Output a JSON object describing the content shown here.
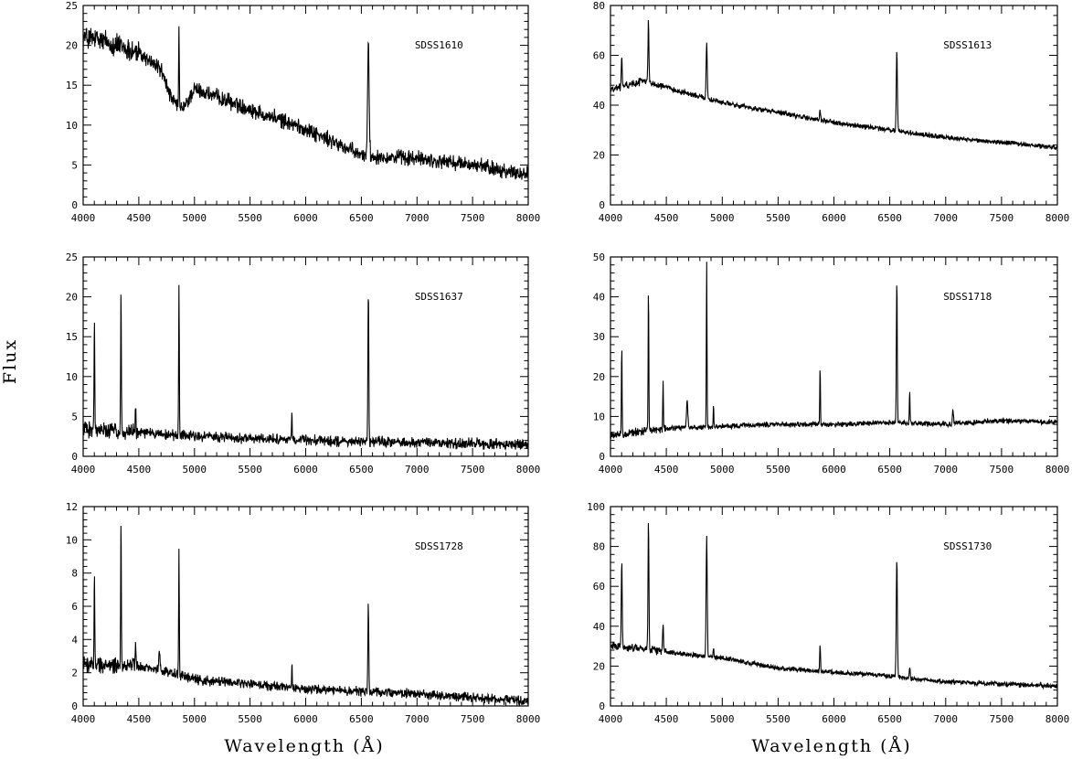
{
  "figure": {
    "ylabel": "Flux",
    "xlabel": "Wavelength (Å)"
  },
  "chart_data": [
    {
      "type": "line",
      "label": "SDSS1610",
      "xlim": [
        4000,
        8000
      ],
      "ylim": [
        0,
        25
      ],
      "xticks": [
        4000,
        4500,
        5000,
        5500,
        6000,
        6500,
        7000,
        7500,
        8000
      ],
      "yticks": [
        0,
        5,
        10,
        15,
        20,
        25
      ],
      "continuum": [
        [
          4000,
          21
        ],
        [
          4200,
          20.5
        ],
        [
          4500,
          19
        ],
        [
          4700,
          17
        ],
        [
          4800,
          13
        ],
        [
          4900,
          12
        ],
        [
          5000,
          14.5
        ],
        [
          5200,
          13.5
        ],
        [
          5500,
          12
        ],
        [
          6000,
          9.5
        ],
        [
          6500,
          6.2
        ],
        [
          7000,
          5.8
        ],
        [
          7500,
          5
        ],
        [
          8000,
          3.8
        ]
      ],
      "noise": 1.2,
      "lines": [
        [
          4861,
          9,
          3
        ],
        [
          6563,
          14,
          7
        ]
      ]
    },
    {
      "type": "line",
      "label": "SDSS1613",
      "xlim": [
        4000,
        8000
      ],
      "ylim": [
        0,
        80
      ],
      "xticks": [
        4000,
        4500,
        5000,
        5500,
        6000,
        6500,
        7000,
        7500,
        8000
      ],
      "yticks": [
        0,
        20,
        40,
        60,
        80
      ],
      "continuum": [
        [
          4000,
          46
        ],
        [
          4300,
          50
        ],
        [
          4500,
          47
        ],
        [
          5000,
          41
        ],
        [
          5500,
          37
        ],
        [
          6000,
          33
        ],
        [
          6500,
          30
        ],
        [
          7000,
          27
        ],
        [
          7500,
          25
        ],
        [
          8000,
          23
        ]
      ],
      "noise": 1.2,
      "lines": [
        [
          4101,
          12,
          4
        ],
        [
          4340,
          25,
          4
        ],
        [
          4861,
          22,
          5
        ],
        [
          5876,
          4,
          4
        ],
        [
          6563,
          32,
          5
        ]
      ]
    },
    {
      "type": "line",
      "label": "SDSS1637",
      "xlim": [
        4000,
        8000
      ],
      "ylim": [
        0,
        25
      ],
      "xticks": [
        4000,
        4500,
        5000,
        5500,
        6000,
        6500,
        7000,
        7500,
        8000
      ],
      "yticks": [
        0,
        5,
        10,
        15,
        20,
        25
      ],
      "continuum": [
        [
          4000,
          3.5
        ],
        [
          4500,
          3
        ],
        [
          5000,
          2.5
        ],
        [
          6000,
          2
        ],
        [
          7000,
          1.7
        ],
        [
          8000,
          1.5
        ]
      ],
      "noise": 0.8,
      "lines": [
        [
          4101,
          14,
          3
        ],
        [
          4340,
          18,
          3
        ],
        [
          4471,
          4,
          3
        ],
        [
          4861,
          19,
          3
        ],
        [
          5876,
          3,
          3
        ],
        [
          6563,
          19,
          4
        ]
      ]
    },
    {
      "type": "line",
      "label": "SDSS1718",
      "xlim": [
        4000,
        8000
      ],
      "ylim": [
        0,
        50
      ],
      "xticks": [
        4000,
        4500,
        5000,
        5500,
        6000,
        6500,
        7000,
        7500,
        8000
      ],
      "yticks": [
        0,
        10,
        20,
        30,
        40,
        50
      ],
      "continuum": [
        [
          4000,
          5
        ],
        [
          4200,
          6
        ],
        [
          4500,
          7
        ],
        [
          5000,
          7.5
        ],
        [
          5500,
          8
        ],
        [
          6000,
          8
        ],
        [
          6500,
          8.5
        ],
        [
          7000,
          8
        ],
        [
          7500,
          9
        ],
        [
          8000,
          8.5
        ]
      ],
      "noise": 0.8,
      "lines": [
        [
          4101,
          22,
          3
        ],
        [
          4340,
          36,
          3
        ],
        [
          4471,
          12,
          3
        ],
        [
          4686,
          7,
          6
        ],
        [
          4861,
          42,
          3
        ],
        [
          4922,
          5,
          3
        ],
        [
          5876,
          15,
          3
        ],
        [
          6563,
          36,
          4
        ],
        [
          6678,
          8,
          3
        ],
        [
          7065,
          4,
          5
        ]
      ]
    },
    {
      "type": "line",
      "label": "SDSS1728",
      "xlim": [
        4000,
        8000
      ],
      "ylim": [
        0,
        12
      ],
      "xticks": [
        4000,
        4500,
        5000,
        5500,
        6000,
        6500,
        7000,
        7500,
        8000
      ],
      "yticks": [
        0,
        2,
        4,
        6,
        8,
        10,
        12
      ],
      "continuum": [
        [
          4000,
          2.5
        ],
        [
          4500,
          2.4
        ],
        [
          4800,
          2.0
        ],
        [
          5000,
          1.6
        ],
        [
          5500,
          1.3
        ],
        [
          6000,
          1.0
        ],
        [
          6500,
          0.9
        ],
        [
          7000,
          0.7
        ],
        [
          7500,
          0.5
        ],
        [
          8000,
          0.3
        ]
      ],
      "noise": 0.35,
      "lines": [
        [
          4101,
          5.5,
          3
        ],
        [
          4340,
          8.5,
          3
        ],
        [
          4471,
          1.5,
          4
        ],
        [
          4686,
          1.3,
          5
        ],
        [
          4861,
          7.3,
          3
        ],
        [
          5876,
          1.5,
          3
        ],
        [
          6563,
          5.3,
          4
        ]
      ]
    },
    {
      "type": "line",
      "label": "SDSS1730",
      "xlim": [
        4000,
        8000
      ],
      "ylim": [
        0,
        100
      ],
      "xticks": [
        4000,
        4500,
        5000,
        5500,
        6000,
        6500,
        7000,
        7500,
        8000
      ],
      "yticks": [
        0,
        20,
        40,
        60,
        80,
        100
      ],
      "continuum": [
        [
          4000,
          30
        ],
        [
          4300,
          29
        ],
        [
          4500,
          27
        ],
        [
          5000,
          24
        ],
        [
          5500,
          19
        ],
        [
          6000,
          17
        ],
        [
          6500,
          15
        ],
        [
          7000,
          12
        ],
        [
          7500,
          11
        ],
        [
          8000,
          10
        ]
      ],
      "noise": 1.5,
      "lines": [
        [
          4101,
          45,
          4
        ],
        [
          4340,
          64,
          4
        ],
        [
          4471,
          14,
          4
        ],
        [
          4861,
          60,
          5
        ],
        [
          4922,
          5,
          4
        ],
        [
          5876,
          13,
          4
        ],
        [
          6563,
          58,
          5
        ],
        [
          6678,
          6,
          4
        ]
      ]
    }
  ]
}
